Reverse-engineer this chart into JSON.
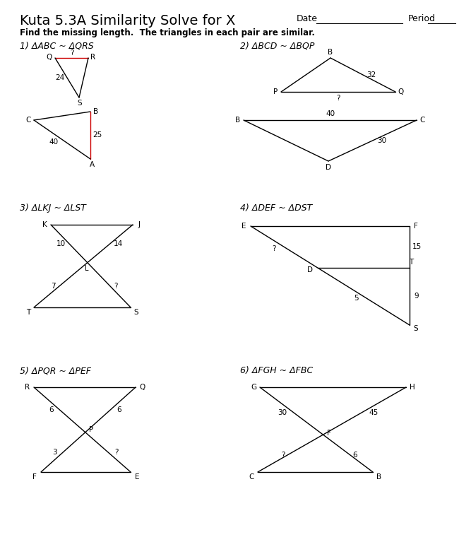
{
  "title": "Kuta 5.3A Similarity Solve for X",
  "date_label": "Date",
  "period_label": "Period",
  "instruction": "Find the missing length.  The triangles in each pair are similar.",
  "bg_color": "#ffffff",
  "text_color": "#000000",
  "line_color": "#000000",
  "red_color": "#cc0000",
  "p1_label": "1) ΔABC ~ ΔQRS",
  "p2_label": "2) ΔBCD ~ ΔBQP",
  "p3_label": "3) ΔLKJ ~ ΔLST",
  "p4_label": "4) ΔDEF ~ ΔDST",
  "p5_label": "5) ΔPQR ~ ΔPEF",
  "p6_label": "6) ΔFGH ~ ΔFBC"
}
